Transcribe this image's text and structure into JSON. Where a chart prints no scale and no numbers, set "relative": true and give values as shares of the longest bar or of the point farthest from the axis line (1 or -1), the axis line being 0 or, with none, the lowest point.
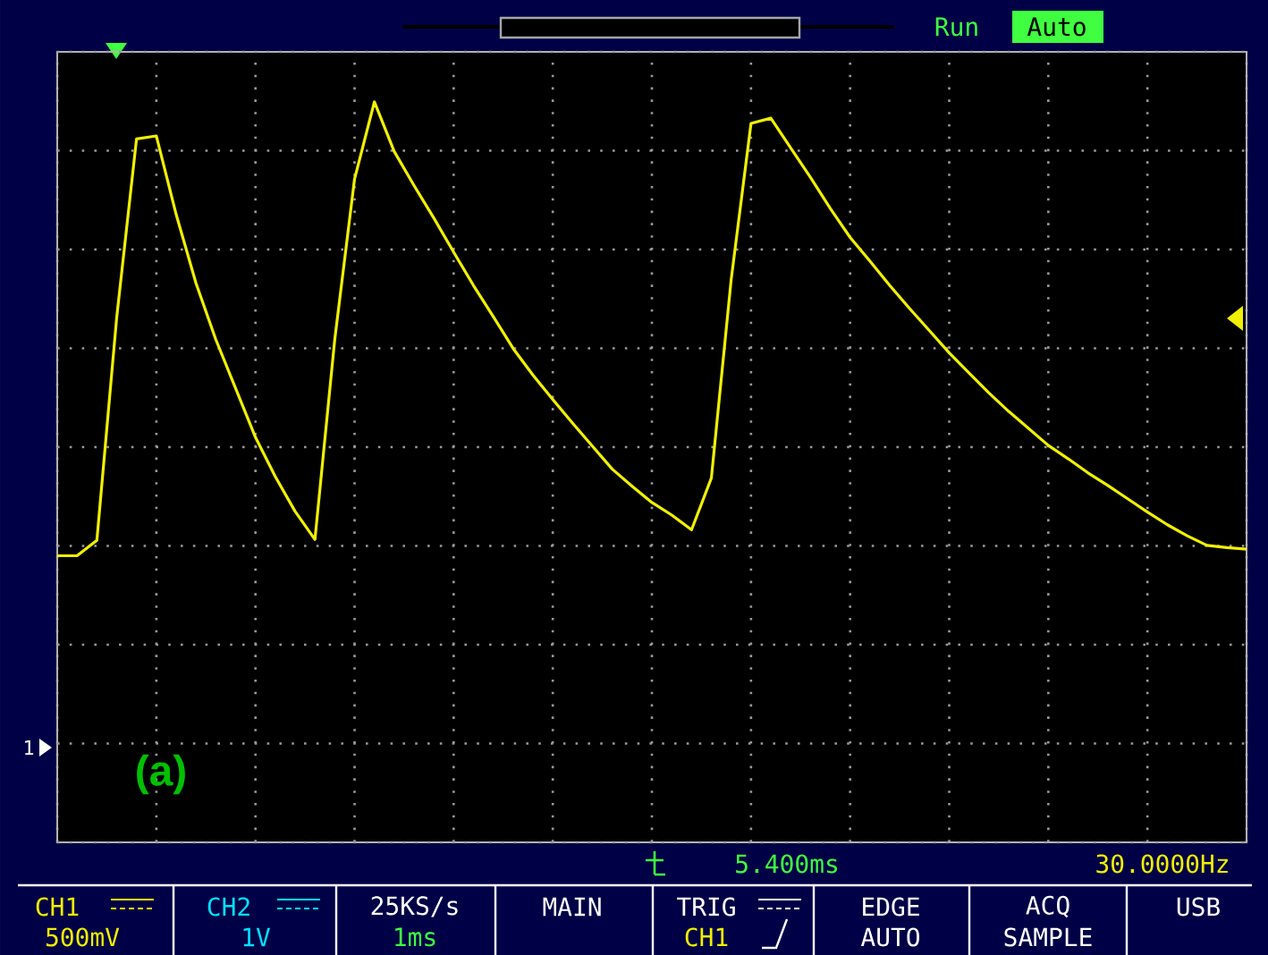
{
  "chart_data": {
    "type": "line",
    "relative": true,
    "color": "#f0f000",
    "marker": "none",
    "line_style": "solid",
    "grid": true,
    "categories": [
      null,
      null,
      null,
      null,
      null,
      null,
      null,
      null,
      null,
      null,
      null,
      null,
      null,
      null,
      null,
      null,
      null,
      null,
      null,
      null,
      null,
      null,
      null,
      null,
      null,
      null,
      null,
      null,
      null,
      null,
      null,
      null,
      null,
      null,
      null,
      null,
      null,
      null,
      null,
      null,
      null,
      null,
      null,
      null,
      null,
      null,
      null,
      null,
      null,
      null,
      null,
      null,
      null,
      null,
      null,
      null,
      null,
      null,
      null,
      null,
      null
    ],
    "values": [
      0.387,
      0.387,
      0.408,
      0.709,
      0.95,
      0.954,
      0.848,
      0.755,
      0.679,
      0.613,
      0.547,
      0.494,
      0.447,
      0.409,
      0.679,
      0.896,
      1,
      0.933,
      0.887,
      0.843,
      0.797,
      0.752,
      0.71,
      0.667,
      0.631,
      0.598,
      0.566,
      0.535,
      0.504,
      0.481,
      0.459,
      0.442,
      0.422,
      0.492,
      0.76,
      0.971,
      0.978,
      0.938,
      0.898,
      0.856,
      0.817,
      0.785,
      0.752,
      0.721,
      0.691,
      0.661,
      0.634,
      0.607,
      0.582,
      0.559,
      0.536,
      0.518,
      0.499,
      0.482,
      0.464,
      0.446,
      0.429,
      0.414,
      0.401,
      0.398,
      0.396
    ],
    "annotations": [
      "Run",
      "Auto",
      "(a)",
      "1",
      "5.400ms",
      "30.0000Hz",
      "CH1",
      "500mV",
      "CH2",
      "1V",
      "25KS/s",
      "1ms",
      "MAIN",
      "TRIG",
      "CH1",
      "EDGE",
      "AUTO",
      "ACQ",
      "SAMPLE",
      "USB"
    ]
  }
}
